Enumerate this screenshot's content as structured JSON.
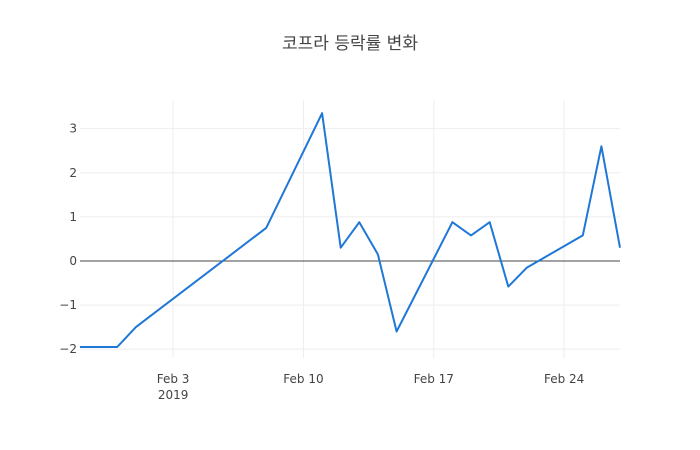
{
  "chart_data": {
    "type": "line",
    "title": "코프라 등락률 변화",
    "xlabel": "",
    "ylabel": "",
    "x_range": [
      "2019-01-29",
      "2019-02-27"
    ],
    "ylim": [
      -2.2,
      3.65
    ],
    "grid": true,
    "zero_line": true,
    "x_ticks": [
      {
        "date": "2019-02-03",
        "label": "Feb 3",
        "sublabel": "2019"
      },
      {
        "date": "2019-02-10",
        "label": "Feb 10",
        "sublabel": ""
      },
      {
        "date": "2019-02-17",
        "label": "Feb 17",
        "sublabel": ""
      },
      {
        "date": "2019-02-24",
        "label": "Feb 24",
        "sublabel": ""
      }
    ],
    "y_ticks": [
      {
        "value": 3,
        "label": "3"
      },
      {
        "value": 2,
        "label": "2"
      },
      {
        "value": 1,
        "label": "1"
      },
      {
        "value": 0,
        "label": "0"
      },
      {
        "value": -1,
        "label": "−1"
      },
      {
        "value": -2,
        "label": "−2"
      }
    ],
    "series": [
      {
        "color": "#1f77d6",
        "x": [
          "2019-01-29",
          "2019-01-31",
          "2019-02-01",
          "2019-02-08",
          "2019-02-11",
          "2019-02-12",
          "2019-02-13",
          "2019-02-14",
          "2019-02-15",
          "2019-02-18",
          "2019-02-19",
          "2019-02-20",
          "2019-02-21",
          "2019-02-22",
          "2019-02-25",
          "2019-02-26",
          "2019-02-27"
        ],
        "y": [
          -1.95,
          -1.95,
          -1.5,
          0.75,
          3.35,
          0.3,
          0.88,
          0.15,
          -1.6,
          0.88,
          0.58,
          0.88,
          -0.58,
          -0.15,
          0.58,
          2.6,
          0.3
        ]
      }
    ]
  }
}
